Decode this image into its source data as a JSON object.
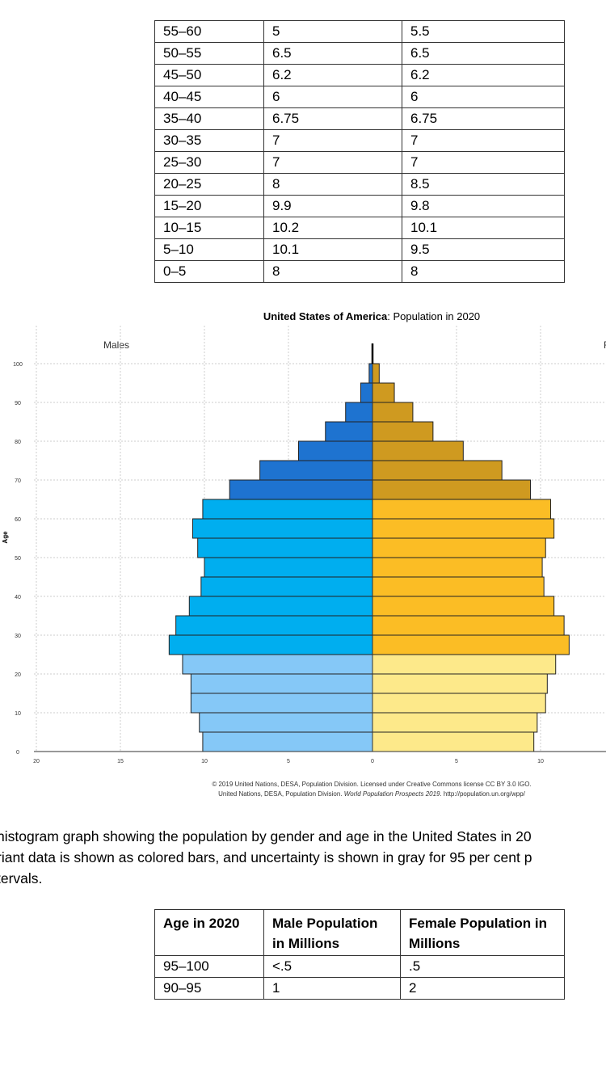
{
  "top_table": {
    "rows": [
      [
        "55–60",
        "5",
        "5.5"
      ],
      [
        "50–55",
        "6.5",
        "6.5"
      ],
      [
        "45–50",
        "6.2",
        "6.2"
      ],
      [
        "40–45",
        "6",
        "6"
      ],
      [
        "35–40",
        "6.75",
        "6.75"
      ],
      [
        "30–35",
        "7",
        "7"
      ],
      [
        "25–30",
        "7",
        "7"
      ],
      [
        "20–25",
        "8",
        "8.5"
      ],
      [
        "15–20",
        "9.9",
        "9.8"
      ],
      [
        "10–15",
        "10.2",
        "10.1"
      ],
      [
        "5–10",
        "10.1",
        "9.5"
      ],
      [
        "0–5",
        "8",
        "8"
      ]
    ]
  },
  "chart_data": {
    "type": "bar",
    "title_bold": "United States of America",
    "title_rest": ": Population in 2020",
    "ylabel": "Age",
    "left_label": "Males",
    "right_label": "F",
    "x_ticks": [
      "20",
      "15",
      "10",
      "5",
      "0",
      "5",
      "10"
    ],
    "y_ticks": [
      "0",
      "10",
      "20",
      "30",
      "40",
      "50",
      "60",
      "70",
      "80",
      "90",
      "100"
    ],
    "age_groups": [
      "0-4",
      "5-9",
      "10-14",
      "15-19",
      "20-24",
      "25-29",
      "30-34",
      "35-39",
      "40-44",
      "45-49",
      "50-54",
      "55-59",
      "60-64",
      "65-69",
      "70-74",
      "75-79",
      "80-84",
      "85-89",
      "90-94",
      "95-99"
    ],
    "males": [
      10.1,
      10.3,
      10.8,
      10.8,
      11.3,
      12.1,
      11.7,
      10.9,
      10.2,
      10.0,
      10.4,
      10.7,
      10.1,
      8.5,
      6.7,
      4.4,
      2.8,
      1.6,
      0.7,
      0.2
    ],
    "females": [
      9.6,
      9.8,
      10.3,
      10.4,
      10.9,
      11.7,
      11.4,
      10.8,
      10.2,
      10.1,
      10.3,
      10.8,
      10.6,
      9.4,
      7.7,
      5.4,
      3.6,
      2.4,
      1.3,
      0.4
    ],
    "open_age_100_plus": 0.1,
    "colors": {
      "male": [
        "#85c8f7",
        "#00aeef",
        "#1e73d0"
      ],
      "female": [
        "#fde98a",
        "#fbbd25",
        "#cf9a20"
      ],
      "outline": "#222222",
      "grid": "#cccccc"
    },
    "credit_line1": "© 2019 United Nations, DESA, Population Division. Licensed under Creative Commons license CC BY 3.0 IGO.",
    "credit_line2_a": "United Nations, DESA, Population Division. ",
    "credit_line2_b": "World Population Prospects 2019",
    "credit_line2_c": ". http://population.un.org/wpp/"
  },
  "caption": {
    "line1": "histogram graph showing the population by gender and age in the United States in 20",
    "line2": "riant data is shown as colored bars, and uncertainty is shown in gray for 95 per cent p",
    "line3": "tervals."
  },
  "bottom_table": {
    "headers": [
      "Age in 2020",
      "Male Population in Millions",
      "Female Population in Millions"
    ],
    "rows": [
      [
        "95–100",
        "<.5",
        ".5"
      ],
      [
        "90–95",
        "1",
        "2"
      ]
    ]
  }
}
